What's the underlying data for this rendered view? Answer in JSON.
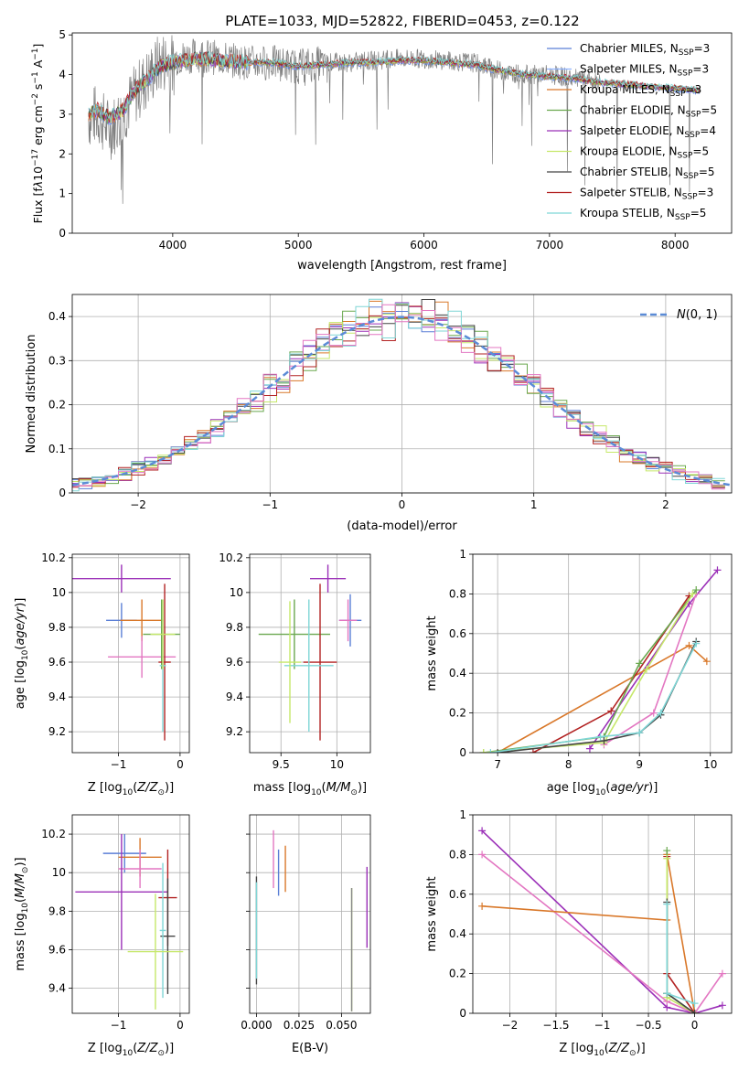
{
  "figure": {
    "title": "PLATE=1033, MJD=52822, FIBERID=0453, z=0.122"
  },
  "chart_data": [
    {
      "id": "spectrum",
      "type": "line",
      "xlabel": "wavelength [Angstrom, rest frame]",
      "ylabel": "Flux [f_λ 10^-17 erg cm^-2 s^-1 A^-1]",
      "xlim": [
        3200,
        8450
      ],
      "ylim": [
        0,
        5.05
      ],
      "xticks": [
        4000,
        5000,
        6000,
        7000,
        8000
      ],
      "yticks": [
        0,
        1,
        2,
        3,
        4,
        5
      ],
      "grid": false,
      "legend_position": "top-right",
      "data_x": [
        3330,
        3400,
        3500,
        3600,
        3700,
        3800,
        3900,
        4000,
        4200,
        4400,
        4600,
        4800,
        5000,
        5200,
        5400,
        5600,
        5800,
        6000,
        6200,
        6400,
        6600,
        6800,
        7000,
        7200,
        7400,
        7600,
        7800,
        8000,
        8200
      ],
      "data_y": [
        2.9,
        3.0,
        2.6,
        3.0,
        3.5,
        3.9,
        4.3,
        4.4,
        4.5,
        4.4,
        4.3,
        4.3,
        4.2,
        4.3,
        4.3,
        4.35,
        4.4,
        4.4,
        4.35,
        4.3,
        4.1,
        4.0,
        4.0,
        3.9,
        3.8,
        3.8,
        3.7,
        3.65,
        3.6
      ],
      "model_y": [
        3.0,
        3.1,
        2.9,
        3.1,
        3.6,
        3.9,
        4.2,
        4.3,
        4.4,
        4.35,
        4.3,
        4.3,
        4.2,
        4.25,
        4.3,
        4.3,
        4.35,
        4.35,
        4.3,
        4.25,
        4.1,
        4.0,
        3.95,
        3.9,
        3.8,
        3.75,
        3.7,
        3.65,
        3.6
      ],
      "series": [
        {
          "name": "Chabrier MILES, N_SSP=3",
          "label_main": "Chabrier MILES, N",
          "label_sub": "SSP",
          "label_end": "=3",
          "color": "#5b7fd6"
        },
        {
          "name": "Salpeter MILES, N_SSP=3",
          "label_main": "Salpeter MILES, N",
          "label_sub": "SSP",
          "label_end": "=3",
          "color": "#8fb3ff"
        },
        {
          "name": "Kroupa MILES, N_SSP=3",
          "label_main": "Kroupa MILES, N",
          "label_sub": "SSP",
          "label_end": "=3",
          "color": "#d9782a"
        },
        {
          "name": "Chabrier ELODIE, N_SSP=5",
          "label_main": "Chabrier ELODIE, N",
          "label_sub": "SSP",
          "label_end": "=5",
          "color": "#6aa84f"
        },
        {
          "name": "Salpeter ELODIE, N_SSP=4",
          "label_main": "Salpeter ELODIE, N",
          "label_sub": "SSP",
          "label_end": "=4",
          "color": "#9b30b8"
        },
        {
          "name": "Kroupa ELODIE, N_SSP=5",
          "label_main": "Kroupa ELODIE, N",
          "label_sub": "SSP",
          "label_end": "=5",
          "color": "#c6e86a"
        },
        {
          "name": "Chabrier STELIB, N_SSP=5",
          "label_main": "Chabrier STELIB, N",
          "label_sub": "SSP",
          "label_end": "=5",
          "color": "#444444"
        },
        {
          "name": "Salpeter STELIB, N_SSP=3",
          "label_main": "Salpeter STELIB, N",
          "label_sub": "SSP",
          "label_end": "=3",
          "color": "#b22222"
        },
        {
          "name": "Kroupa STELIB, N_SSP=5",
          "label_main": "Kroupa STELIB, N",
          "label_sub": "SSP",
          "label_end": "=5",
          "color": "#7fd6d6"
        }
      ]
    },
    {
      "id": "residuals",
      "type": "line",
      "xlabel": "(data-model)/error",
      "ylabel": "Normed distribution",
      "xlim": [
        -2.5,
        2.5
      ],
      "ylim": [
        0,
        0.45
      ],
      "xticks": [
        -2,
        -1,
        0,
        1,
        2
      ],
      "yticks": [
        0.0,
        0.1,
        0.2,
        0.3,
        0.4
      ],
      "grid": true,
      "legend_position": "top-right",
      "legend_label": "N(0,1)",
      "gaussian_color": "#5b8bd6",
      "step_colors": [
        "#5b7fd6",
        "#9b30b8",
        "#d9782a",
        "#6aa84f",
        "#c6e86a",
        "#444444",
        "#b22222",
        "#7fd6d6",
        "#e377c2"
      ]
    },
    {
      "id": "age-vs-Z",
      "type": "scatter",
      "xlabel": "Z [log10(Z/Z⊙)]",
      "ylabel": "age [log10(age/yr)]",
      "xlim": [
        -1.75,
        0.15
      ],
      "ylim": [
        9.08,
        10.22
      ],
      "xticks": [
        -1,
        0
      ],
      "yticks": [
        9.2,
        9.4,
        9.6,
        9.8,
        10.0,
        10.2
      ],
      "grid": true,
      "points": [
        {
          "x": -0.95,
          "y": 10.08,
          "xerr": 0.8,
          "yerr": 0.08,
          "color": "#9b30b8"
        },
        {
          "x": -0.95,
          "y": 9.84,
          "xerr": 0.25,
          "yerr": 0.1,
          "color": "#5b7fd6"
        },
        {
          "x": -0.62,
          "y": 9.84,
          "xerr": 0.35,
          "yerr": 0.12,
          "color": "#d9782a"
        },
        {
          "x": -0.62,
          "y": 9.63,
          "xerr": 0.55,
          "yerr": 0.12,
          "color": "#e377c2"
        },
        {
          "x": -0.3,
          "y": 9.76,
          "xerr": 0.3,
          "yerr": 0.2,
          "color": "#6aa84f"
        },
        {
          "x": -0.25,
          "y": 9.6,
          "xerr": 0.1,
          "yerr": 0.45,
          "color": "#b22222"
        },
        {
          "x": -0.28,
          "y": 9.58,
          "xerr": 0.05,
          "yerr": 0.38,
          "color": "#7fd6d6"
        },
        {
          "x": -0.28,
          "y": 9.76,
          "xerr": 0.2,
          "yerr": 0.2,
          "color": "#c6e86a"
        }
      ]
    },
    {
      "id": "age-vs-mass",
      "type": "scatter",
      "xlabel": "mass [log10(M/M⊙)]",
      "ylabel": "",
      "xlim": [
        9.22,
        10.3
      ],
      "ylim": [
        9.08,
        10.22
      ],
      "xticks": [
        9.5,
        10.0
      ],
      "yticks": [
        9.2,
        9.4,
        9.6,
        9.8,
        10.0,
        10.2
      ],
      "grid": true,
      "points": [
        {
          "x": 9.92,
          "y": 10.08,
          "xerr": 0.16,
          "yerr": 0.08,
          "color": "#9b30b8"
        },
        {
          "x": 10.12,
          "y": 9.84,
          "xerr": 0.1,
          "yerr": 0.15,
          "color": "#5b7fd6"
        },
        {
          "x": 10.1,
          "y": 9.84,
          "xerr": 0.08,
          "yerr": 0.12,
          "color": "#e377c2"
        },
        {
          "x": 9.62,
          "y": 9.76,
          "xerr": 0.32,
          "yerr": 0.2,
          "color": "#6aa84f"
        },
        {
          "x": 9.85,
          "y": 9.6,
          "xerr": 0.15,
          "yerr": 0.45,
          "color": "#b22222"
        },
        {
          "x": 9.75,
          "y": 9.58,
          "xerr": 0.22,
          "yerr": 0.38,
          "color": "#7fd6d6"
        },
        {
          "x": 9.58,
          "y": 9.6,
          "xerr": 0.1,
          "yerr": 0.35,
          "color": "#c6e86a"
        }
      ]
    },
    {
      "id": "massweight-vs-age",
      "type": "line",
      "xlabel": "age [log10(age/yr)]",
      "ylabel": "mass weight",
      "xlim": [
        6.65,
        10.3
      ],
      "ylim": [
        0,
        1.0
      ],
      "xticks": [
        7,
        8,
        9,
        10
      ],
      "yticks": [
        0.0,
        0.2,
        0.4,
        0.6,
        0.8,
        1.0
      ],
      "grid": true,
      "series": [
        {
          "color": "#9b30b8",
          "x": [
            8.3,
            9.7,
            10.1
          ],
          "y": [
            0.02,
            0.75,
            0.92
          ]
        },
        {
          "color": "#d9782a",
          "x": [
            7.0,
            9.7,
            9.95
          ],
          "y": [
            0.0,
            0.54,
            0.46
          ]
        },
        {
          "color": "#b22222",
          "x": [
            7.5,
            8.6,
            9.7
          ],
          "y": [
            0.0,
            0.21,
            0.79
          ]
        },
        {
          "color": "#e377c2",
          "x": [
            8.5,
            9.2,
            9.8
          ],
          "y": [
            0.04,
            0.2,
            0.8
          ]
        },
        {
          "color": "#6aa84f",
          "x": [
            6.8,
            8.5,
            9.0,
            9.8
          ],
          "y": [
            0.0,
            0.08,
            0.45,
            0.82
          ]
        },
        {
          "color": "#c6e86a",
          "x": [
            6.8,
            8.5,
            9.1,
            9.75
          ],
          "y": [
            0.0,
            0.05,
            0.42,
            0.8
          ]
        },
        {
          "color": "#444444",
          "x": [
            7.0,
            8.5,
            9.0,
            9.3,
            9.8
          ],
          "y": [
            0.0,
            0.06,
            0.1,
            0.19,
            0.56
          ]
        },
        {
          "color": "#7fd6d6",
          "x": [
            6.9,
            8.45,
            9.0,
            9.3,
            9.8
          ],
          "y": [
            0.0,
            0.08,
            0.1,
            0.2,
            0.55
          ]
        }
      ]
    },
    {
      "id": "mass-vs-Z",
      "type": "scatter",
      "xlabel": "Z [log10(Z/Z⊙)]",
      "ylabel": "mass [log10(M/M⊙)]",
      "xlim": [
        -1.75,
        0.15
      ],
      "ylim": [
        9.27,
        10.3
      ],
      "xticks": [
        -1,
        0
      ],
      "yticks": [
        9.4,
        9.6,
        9.8,
        10.0,
        10.2
      ],
      "grid": true,
      "points": [
        {
          "x": -0.9,
          "y": 10.1,
          "xerr": 0.35,
          "yerr": 0.1,
          "color": "#5b7fd6"
        },
        {
          "x": -0.65,
          "y": 10.08,
          "xerr": 0.35,
          "yerr": 0.1,
          "color": "#d9782a"
        },
        {
          "x": -0.65,
          "y": 10.02,
          "xerr": 0.35,
          "yerr": 0.1,
          "color": "#e377c2"
        },
        {
          "x": -0.95,
          "y": 9.9,
          "xerr": 0.75,
          "yerr": 0.3,
          "color": "#9b30b8"
        },
        {
          "x": -0.2,
          "y": 9.87,
          "xerr": 0.15,
          "yerr": 0.25,
          "color": "#b22222"
        },
        {
          "x": -0.2,
          "y": 9.67,
          "xerr": 0.12,
          "yerr": 0.3,
          "color": "#444444"
        },
        {
          "x": -0.28,
          "y": 9.7,
          "xerr": 0.05,
          "yerr": 0.35,
          "color": "#7fd6d6"
        },
        {
          "x": -0.4,
          "y": 9.59,
          "xerr": 0.45,
          "yerr": 0.3,
          "color": "#c6e86a"
        }
      ]
    },
    {
      "id": "mass-vs-EBV",
      "type": "scatter",
      "xlabel": "E(B-V)",
      "ylabel": "",
      "xlim": [
        -0.004,
        0.067
      ],
      "ylim": [
        9.27,
        10.3
      ],
      "xticks": [
        0.0,
        0.025,
        0.05
      ],
      "xtick_labels": [
        "0.000",
        "0.025",
        "0.050"
      ],
      "yticks": [
        9.4,
        9.6,
        9.8,
        10.0,
        10.2
      ],
      "grid": true,
      "points": [
        {
          "x": 0.0,
          "y": 9.7,
          "yerr": 0.28,
          "color": "#444444"
        },
        {
          "x": 0.0,
          "y": 9.7,
          "yerr": 0.25,
          "color": "#7fd6d6"
        },
        {
          "x": 0.01,
          "y": 10.07,
          "yerr": 0.15,
          "color": "#e377c2"
        },
        {
          "x": 0.013,
          "y": 10.0,
          "yerr": 0.12,
          "color": "#5b7fd6"
        },
        {
          "x": 0.017,
          "y": 10.02,
          "yerr": 0.12,
          "color": "#d9782a"
        },
        {
          "x": 0.056,
          "y": 9.6,
          "yerr": 0.32,
          "color": "#c6e86a"
        },
        {
          "x": 0.056,
          "y": 9.6,
          "yerr": 0.32,
          "color": "#888888"
        },
        {
          "x": 0.065,
          "y": 9.82,
          "yerr": 0.21,
          "color": "#9b30b8"
        }
      ]
    },
    {
      "id": "massweight-vs-Z",
      "type": "line",
      "xlabel": "Z [log10(Z/Z⊙)]",
      "ylabel": "mass weight",
      "xlim": [
        -2.4,
        0.4
      ],
      "ylim": [
        0,
        1.0
      ],
      "xticks": [
        -2.0,
        -1.5,
        -1.0,
        -0.5,
        0.0
      ],
      "yticks": [
        0.0,
        0.2,
        0.4,
        0.6,
        0.8,
        1.0
      ],
      "grid": true,
      "series": [
        {
          "color": "#9b30b8",
          "x": [
            -2.3,
            -0.3,
            0.0,
            0.3
          ],
          "y": [
            0.92,
            0.03,
            0.0,
            0.04
          ]
        },
        {
          "color": "#e377c2",
          "x": [
            -2.3,
            -0.3,
            0.0,
            0.3
          ],
          "y": [
            0.8,
            0.06,
            0.0,
            0.2
          ]
        },
        {
          "color": "#d9782a",
          "x": [
            -2.3,
            -0.3,
            -0.3,
            0.0
          ],
          "y": [
            0.54,
            0.47,
            0.8,
            0.0
          ]
        },
        {
          "color": "#b22222",
          "x": [
            -0.3,
            -0.3,
            0.0
          ],
          "y": [
            0.79,
            0.2,
            0.0
          ]
        },
        {
          "color": "#6aa84f",
          "x": [
            -0.3,
            -0.3,
            0.0
          ],
          "y": [
            0.82,
            0.1,
            0.0
          ]
        },
        {
          "color": "#c6e86a",
          "x": [
            -0.3,
            -0.3,
            0.0
          ],
          "y": [
            0.78,
            0.08,
            0.0
          ]
        },
        {
          "color": "#444444",
          "x": [
            -0.3,
            -0.3,
            0.0
          ],
          "y": [
            0.56,
            0.1,
            0.0
          ]
        },
        {
          "color": "#7fd6d6",
          "x": [
            -0.3,
            -0.3,
            0.0
          ],
          "y": [
            0.55,
            0.1,
            0.05
          ]
        }
      ]
    }
  ]
}
